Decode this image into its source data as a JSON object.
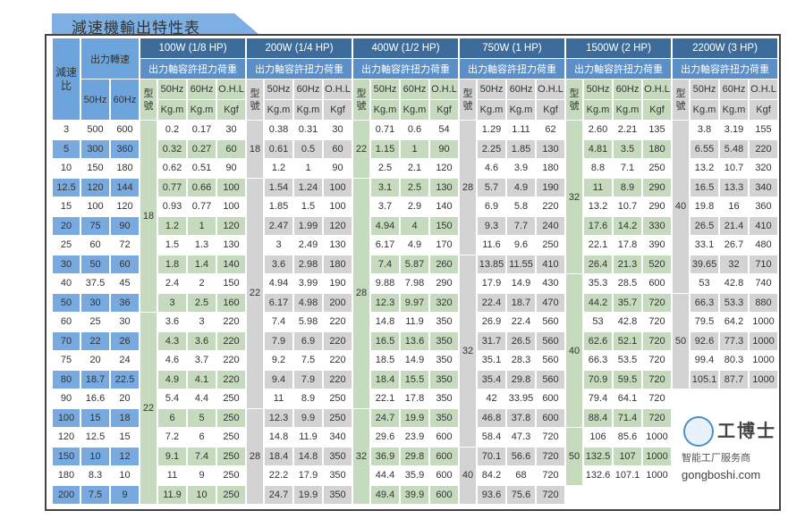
{
  "title": "減速機輸出特性表",
  "header": {
    "ratio": "減速比",
    "output_speed": "出力轉速",
    "hz50": "50Hz",
    "hz60": "60Hz",
    "torque_label": "出力軸容許扭力荷重",
    "model": "型號",
    "col_50": "50Hz",
    "col_60": "60Hz",
    "col_ohl": "O.H.L",
    "unit_kgm": "Kg.m",
    "unit_kgf": "Kgf"
  },
  "rows": [
    [
      "3",
      "500",
      "600"
    ],
    [
      "5",
      "300",
      "360"
    ],
    [
      "10",
      "150",
      "180"
    ],
    [
      "12.5",
      "120",
      "144"
    ],
    [
      "15",
      "100",
      "120"
    ],
    [
      "20",
      "75",
      "90"
    ],
    [
      "25",
      "60",
      "72"
    ],
    [
      "30",
      "50",
      "60"
    ],
    [
      "40",
      "37.5",
      "45"
    ],
    [
      "50",
      "30",
      "36"
    ],
    [
      "60",
      "25",
      "30"
    ],
    [
      "70",
      "22",
      "26"
    ],
    [
      "75",
      "20",
      "24"
    ],
    [
      "80",
      "18.7",
      "22.5"
    ],
    [
      "90",
      "16.6",
      "20"
    ],
    [
      "100",
      "15",
      "18"
    ],
    [
      "120",
      "12.5",
      "15"
    ],
    [
      "150",
      "10",
      "12"
    ],
    [
      "180",
      "8.3",
      "10"
    ],
    [
      "200",
      "7.5",
      "9"
    ]
  ],
  "groups": [
    {
      "label": "100W (1/8 HP)",
      "tone": "green",
      "models": [
        {
          "value": "18",
          "span": 10
        },
        {
          "value": "22",
          "span": 10
        }
      ],
      "values": [
        [
          "0.2",
          "0.17",
          "30"
        ],
        [
          "0.32",
          "0.27",
          "60"
        ],
        [
          "0.62",
          "0.51",
          "90"
        ],
        [
          "0.77",
          "0.66",
          "100"
        ],
        [
          "0.93",
          "0.77",
          "100"
        ],
        [
          "1.2",
          "1",
          "120"
        ],
        [
          "1.5",
          "1.3",
          "130"
        ],
        [
          "1.8",
          "1.4",
          "140"
        ],
        [
          "2.4",
          "2",
          "150"
        ],
        [
          "3",
          "2.5",
          "160"
        ],
        [
          "3.6",
          "3",
          "220"
        ],
        [
          "4.3",
          "3.6",
          "220"
        ],
        [
          "4.6",
          "3.7",
          "220"
        ],
        [
          "4.9",
          "4.1",
          "220"
        ],
        [
          "5.4",
          "4.4",
          "250"
        ],
        [
          "6",
          "5",
          "250"
        ],
        [
          "7.2",
          "6",
          "250"
        ],
        [
          "9.1",
          "7.4",
          "250"
        ],
        [
          "11",
          "9",
          "250"
        ],
        [
          "11.9",
          "10",
          "250"
        ]
      ]
    },
    {
      "label": "200W (1/4 HP)",
      "tone": "gray",
      "models": [
        {
          "value": "18",
          "span": 3
        },
        {
          "value": "22",
          "span": 12
        },
        {
          "value": "28",
          "span": 5
        }
      ],
      "values": [
        [
          "0.38",
          "0.31",
          "30"
        ],
        [
          "0.61",
          "0.5",
          "60"
        ],
        [
          "1.2",
          "1",
          "90"
        ],
        [
          "1.54",
          "1.24",
          "100"
        ],
        [
          "1.85",
          "1.5",
          "100"
        ],
        [
          "2.47",
          "1.99",
          "120"
        ],
        [
          "3",
          "2.49",
          "130"
        ],
        [
          "3.6",
          "2.98",
          "180"
        ],
        [
          "4.94",
          "3.99",
          "190"
        ],
        [
          "6.17",
          "4.98",
          "200"
        ],
        [
          "7.4",
          "5.98",
          "220"
        ],
        [
          "7.9",
          "6.9",
          "220"
        ],
        [
          "9.2",
          "7.5",
          "220"
        ],
        [
          "9.4",
          "7.9",
          "220"
        ],
        [
          "11",
          "8.9",
          "250"
        ],
        [
          "12.3",
          "9.9",
          "250"
        ],
        [
          "14.8",
          "11.9",
          "340"
        ],
        [
          "18.4",
          "14.8",
          "350"
        ],
        [
          "22.2",
          "17.9",
          "350"
        ],
        [
          "24.7",
          "19.9",
          "350"
        ]
      ]
    },
    {
      "label": "400W (1/2 HP)",
      "tone": "green",
      "models": [
        {
          "value": "22",
          "span": 3
        },
        {
          "value": "28",
          "span": 12
        },
        {
          "value": "32",
          "span": 5
        }
      ],
      "values": [
        [
          "0.71",
          "0.6",
          "54"
        ],
        [
          "1.15",
          "1",
          "90"
        ],
        [
          "2.5",
          "2.1",
          "120"
        ],
        [
          "3.1",
          "2.5",
          "130"
        ],
        [
          "3.7",
          "2.9",
          "140"
        ],
        [
          "4.94",
          "4",
          "150"
        ],
        [
          "6.17",
          "4.9",
          "170"
        ],
        [
          "7.4",
          "5.87",
          "260"
        ],
        [
          "9.88",
          "7.98",
          "290"
        ],
        [
          "12.3",
          "9.97",
          "320"
        ],
        [
          "14.8",
          "11.9",
          "350"
        ],
        [
          "16.5",
          "13.6",
          "350"
        ],
        [
          "18.5",
          "14.9",
          "350"
        ],
        [
          "18.4",
          "15.5",
          "350"
        ],
        [
          "22.1",
          "17.8",
          "350"
        ],
        [
          "24.7",
          "19.9",
          "350"
        ],
        [
          "29.6",
          "23.9",
          "600"
        ],
        [
          "36.9",
          "29.8",
          "600"
        ],
        [
          "44.4",
          "35.9",
          "600"
        ],
        [
          "49.4",
          "39.9",
          "600"
        ]
      ]
    },
    {
      "label": "750W (1 HP)",
      "tone": "gray",
      "models": [
        {
          "value": "28",
          "span": 7
        },
        {
          "value": "32",
          "span": 10
        },
        {
          "value": "40",
          "span": 3
        }
      ],
      "values": [
        [
          "1.29",
          "1.11",
          "62"
        ],
        [
          "2.25",
          "1.85",
          "130"
        ],
        [
          "4.6",
          "3.9",
          "180"
        ],
        [
          "5.7",
          "4.9",
          "190"
        ],
        [
          "6.9",
          "5.8",
          "220"
        ],
        [
          "9.3",
          "7.7",
          "240"
        ],
        [
          "11.6",
          "9.6",
          "250"
        ],
        [
          "13.85",
          "11.55",
          "410"
        ],
        [
          "17.9",
          "14.9",
          "430"
        ],
        [
          "22.4",
          "18.7",
          "470"
        ],
        [
          "26.9",
          "22.4",
          "560"
        ],
        [
          "31.7",
          "26.5",
          "560"
        ],
        [
          "35.1",
          "28.3",
          "560"
        ],
        [
          "35.4",
          "29.8",
          "560"
        ],
        [
          "42",
          "33.95",
          "600"
        ],
        [
          "46.8",
          "37.8",
          "600"
        ],
        [
          "58.4",
          "47.3",
          "720"
        ],
        [
          "70.1",
          "56.6",
          "720"
        ],
        [
          "84.2",
          "68",
          "720"
        ],
        [
          "93.6",
          "75.6",
          "720"
        ]
      ]
    },
    {
      "label": "1500W (2 HP)",
      "tone": "green",
      "models": [
        {
          "value": "32",
          "span": 8
        },
        {
          "value": "40",
          "span": 8
        },
        {
          "value": "50",
          "span": 3
        }
      ],
      "values": [
        [
          "2.60",
          "2.21",
          "135"
        ],
        [
          "4.81",
          "3.5",
          "180"
        ],
        [
          "8.8",
          "7.1",
          "250"
        ],
        [
          "11",
          "8.9",
          "290"
        ],
        [
          "13.2",
          "10.7",
          "290"
        ],
        [
          "17.6",
          "14.2",
          "330"
        ],
        [
          "22.1",
          "17.8",
          "390"
        ],
        [
          "26.4",
          "21.3",
          "520"
        ],
        [
          "35.3",
          "28.5",
          "600"
        ],
        [
          "44.2",
          "35.7",
          "720"
        ],
        [
          "53",
          "42.8",
          "720"
        ],
        [
          "62.6",
          "52.1",
          "720"
        ],
        [
          "66.3",
          "53.5",
          "720"
        ],
        [
          "70.9",
          "59.5",
          "720"
        ],
        [
          "79.4",
          "64.1",
          "720"
        ],
        [
          "88.4",
          "71.4",
          "720"
        ],
        [
          "106",
          "85.6",
          "1000"
        ],
        [
          "132.5",
          "107",
          "1000"
        ],
        [
          "132.6",
          "107.1",
          "1000"
        ]
      ]
    },
    {
      "label": "2200W (3 HP)",
      "tone": "gray",
      "models": [
        {
          "value": "40",
          "span": 9
        },
        {
          "value": "50",
          "span": 5
        }
      ],
      "values": [
        [
          "3.8",
          "3.19",
          "155"
        ],
        [
          "6.55",
          "5.48",
          "220"
        ],
        [
          "13.2",
          "10.7",
          "320"
        ],
        [
          "16.5",
          "13.3",
          "340"
        ],
        [
          "19.8",
          "16",
          "360"
        ],
        [
          "26.5",
          "21.4",
          "410"
        ],
        [
          "33.1",
          "26.7",
          "480"
        ],
        [
          "39.65",
          "32",
          "710"
        ],
        [
          "53",
          "42.8",
          "740"
        ],
        [
          "66.3",
          "53.3",
          "880"
        ],
        [
          "79.5",
          "64.2",
          "1000"
        ],
        [
          "92.6",
          "77.3",
          "1000"
        ],
        [
          "99.4",
          "80.3",
          "1000"
        ],
        [
          "105.1",
          "87.7",
          "1000"
        ]
      ]
    }
  ],
  "watermark": {
    "logo": "工博士",
    "tagline": "智能工厂服务商",
    "url": "gongboshi.com"
  },
  "colors": {
    "header_dark": "#3e6c9a",
    "header_mid": "#5b8fc6",
    "blue": "#78aadf",
    "green": "#c6dabd",
    "gray": "#d3d3d3"
  }
}
